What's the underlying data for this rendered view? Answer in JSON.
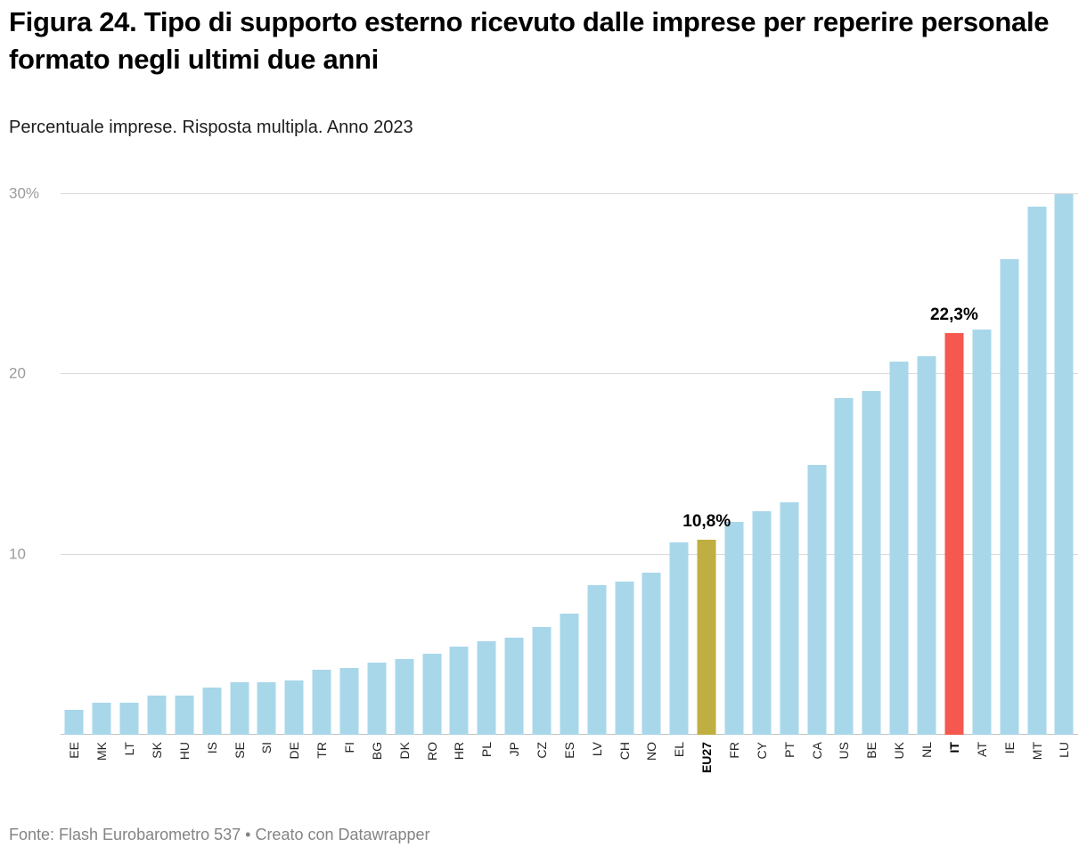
{
  "header": {
    "title": "Figura 24. Tipo di supporto esterno ricevuto dalle imprese per reperire personale formato negli ultimi due anni",
    "subtitle": "Percentuale imprese. Risposta multipla. Anno 2023"
  },
  "footer": {
    "text": "Fonte: Flash Eurobarometro 537 • Creato con Datawrapper"
  },
  "chart_data": {
    "type": "bar",
    "title": "Figura 24. Tipo di supporto esterno ricevuto dalle imprese per reperire personale formato negli ultimi due anni",
    "subtitle": "Percentuale imprese. Risposta multipla. Anno 2023",
    "source": "Fonte: Flash Eurobarometro 537 • Creato con Datawrapper",
    "xlabel": "",
    "ylabel": "Percentuale imprese",
    "ylim": [
      0,
      30
    ],
    "grid": true,
    "bar_color": "#a8d7ea",
    "categories": [
      "EE",
      "MK",
      "LT",
      "SK",
      "HU",
      "IS",
      "SE",
      "SI",
      "DE",
      "TR",
      "FI",
      "BG",
      "DK",
      "RO",
      "HR",
      "PL",
      "JP",
      "CZ",
      "ES",
      "LV",
      "CH",
      "NO",
      "EL",
      "EU27",
      "FR",
      "CY",
      "PT",
      "CA",
      "US",
      "BE",
      "UK",
      "NL",
      "IT",
      "AT",
      "IE",
      "MT",
      "LU"
    ],
    "values": [
      1.4,
      1.8,
      1.8,
      2.2,
      2.2,
      2.6,
      2.9,
      2.9,
      3.0,
      3.6,
      3.7,
      4.0,
      4.2,
      4.5,
      4.9,
      5.2,
      5.4,
      6.0,
      6.7,
      8.3,
      8.5,
      9.0,
      10.7,
      10.8,
      11.8,
      12.4,
      12.9,
      15.0,
      18.7,
      19.1,
      20.7,
      21.0,
      22.3,
      22.5,
      26.4,
      29.3,
      30.0
    ],
    "yticks": [
      {
        "value": 0,
        "label": ""
      },
      {
        "value": 10,
        "label": "10"
      },
      {
        "value": 20,
        "label": "20"
      },
      {
        "value": 30,
        "label": "30%"
      }
    ],
    "highlights": {
      "EU27": {
        "color": "#bfae41",
        "label": "10,8%",
        "bold_axis_label": true
      },
      "IT": {
        "color": "#f4584e",
        "label": "22,3%",
        "bold_axis_label": true
      }
    }
  }
}
